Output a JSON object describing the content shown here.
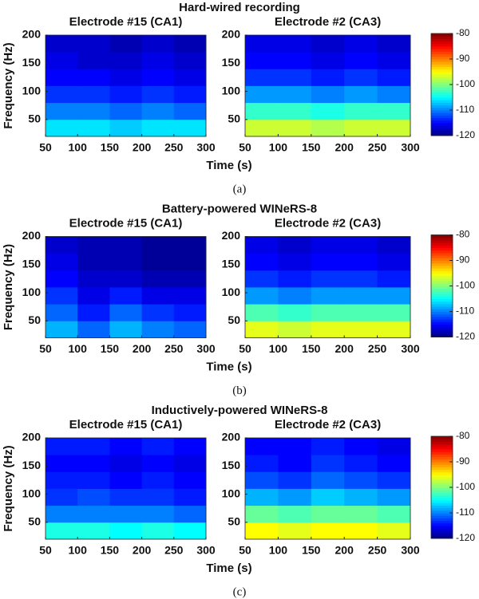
{
  "figure": {
    "rows": [
      {
        "title": "Hard-wired recording",
        "caption": "(a)",
        "x_label": "Time (s)",
        "y_label": "Frequency (Hz)",
        "colorbar": {
          "clim": [
            -120,
            -80
          ],
          "cticks": [
            -120,
            -110,
            -100,
            -90,
            -80
          ]
        }
      },
      {
        "title": "Battery-powered WINeRS-8",
        "caption": "(b)",
        "x_label": "Time (s)",
        "y_label": "Frequency (Hz)",
        "colorbar": {
          "clim": [
            -120,
            -80
          ],
          "cticks": [
            -120,
            -110,
            -100,
            -90,
            -80
          ]
        }
      },
      {
        "title": "Inductively-powered WINeRS-8",
        "caption": "(c)",
        "x_label": "Time (s)",
        "y_label": "Frequency (Hz)",
        "colorbar": {
          "clim": [
            -120,
            -80
          ],
          "cticks": [
            -120,
            -110,
            -100,
            -90,
            -80
          ]
        }
      }
    ]
  },
  "chart_data": [
    {
      "type": "heatmap",
      "title": "Electrode #15 (CA1)",
      "xlim": [
        50,
        300
      ],
      "ylim": [
        20,
        200
      ],
      "xticks": [
        50,
        100,
        150,
        200,
        250,
        300
      ],
      "yticks": [
        50,
        100,
        150,
        200
      ],
      "x_bins": [
        50,
        100,
        150,
        200,
        250,
        300
      ],
      "y_bins": [
        20,
        50,
        80,
        110,
        140,
        170,
        200
      ],
      "values": [
        [
          -106,
          -106,
          -107,
          -106,
          -106
        ],
        [
          -110,
          -110,
          -111,
          -110,
          -111
        ],
        [
          -113,
          -113,
          -114,
          -113,
          -114
        ],
        [
          -115,
          -115,
          -116,
          -115,
          -116
        ],
        [
          -116,
          -117,
          -117,
          -116,
          -117
        ],
        [
          -117,
          -117,
          -118,
          -117,
          -118
        ]
      ]
    },
    {
      "type": "heatmap",
      "title": "Electrode #2 (CA3)",
      "xlim": [
        50,
        300
      ],
      "ylim": [
        20,
        200
      ],
      "xticks": [
        50,
        100,
        150,
        200,
        250,
        300
      ],
      "yticks": [
        50,
        100,
        150,
        200
      ],
      "x_bins": [
        50,
        100,
        150,
        200,
        250,
        300
      ],
      "y_bins": [
        20,
        50,
        80,
        110,
        140,
        170,
        200
      ],
      "values": [
        [
          -97,
          -97,
          -98,
          -97,
          -97
        ],
        [
          -103,
          -103,
          -104,
          -103,
          -103
        ],
        [
          -109,
          -109,
          -110,
          -109,
          -110
        ],
        [
          -113,
          -113,
          -114,
          -113,
          -114
        ],
        [
          -115,
          -115,
          -116,
          -115,
          -116
        ],
        [
          -116,
          -116,
          -117,
          -116,
          -117
        ]
      ]
    },
    {
      "type": "heatmap",
      "title": "Electrode #15 (CA1)",
      "xlim": [
        50,
        300
      ],
      "ylim": [
        20,
        200
      ],
      "xticks": [
        50,
        100,
        150,
        200,
        250,
        300
      ],
      "yticks": [
        50,
        100,
        150,
        200
      ],
      "x_bins": [
        50,
        100,
        150,
        200,
        250,
        300
      ],
      "y_bins": [
        20,
        50,
        80,
        110,
        140,
        170,
        200
      ],
      "values": [
        [
          -108,
          -111,
          -108,
          -110,
          -111
        ],
        [
          -111,
          -114,
          -111,
          -113,
          -114
        ],
        [
          -113,
          -116,
          -114,
          -116,
          -116
        ],
        [
          -115,
          -117,
          -117,
          -118,
          -118
        ],
        [
          -116,
          -118,
          -118,
          -119,
          -119
        ],
        [
          -117,
          -118,
          -118,
          -119,
          -119
        ]
      ]
    },
    {
      "type": "heatmap",
      "title": "Electrode #2 (CA3)",
      "xlim": [
        50,
        300
      ],
      "ylim": [
        20,
        200
      ],
      "xticks": [
        50,
        100,
        150,
        200,
        250,
        300
      ],
      "yticks": [
        50,
        100,
        150,
        200
      ],
      "x_bins": [
        50,
        100,
        150,
        200,
        250,
        300
      ],
      "y_bins": [
        20,
        50,
        80,
        110,
        140,
        170,
        200
      ],
      "values": [
        [
          -96,
          -97,
          -96,
          -96,
          -96
        ],
        [
          -102,
          -103,
          -102,
          -102,
          -102
        ],
        [
          -109,
          -110,
          -109,
          -109,
          -109
        ],
        [
          -113,
          -114,
          -113,
          -113,
          -114
        ],
        [
          -115,
          -116,
          -115,
          -115,
          -116
        ],
        [
          -116,
          -117,
          -116,
          -116,
          -117
        ]
      ]
    },
    {
      "type": "heatmap",
      "title": "Electrode #15 (CA1)",
      "xlim": [
        50,
        300
      ],
      "ylim": [
        20,
        200
      ],
      "xticks": [
        50,
        100,
        150,
        200,
        250,
        300
      ],
      "yticks": [
        50,
        100,
        150,
        200
      ],
      "x_bins": [
        50,
        100,
        150,
        200,
        250,
        300
      ],
      "y_bins": [
        20,
        50,
        80,
        110,
        140,
        170,
        200
      ],
      "values": [
        [
          -104,
          -104,
          -105,
          -104,
          -105
        ],
        [
          -110,
          -110,
          -110,
          -110,
          -111
        ],
        [
          -113,
          -112,
          -113,
          -113,
          -114
        ],
        [
          -114,
          -114,
          -115,
          -114,
          -115
        ],
        [
          -115,
          -115,
          -116,
          -115,
          -116
        ],
        [
          -114,
          -114,
          -115,
          -114,
          -115
        ]
      ]
    },
    {
      "type": "heatmap",
      "title": "Electrode #2 (CA3)",
      "xlim": [
        50,
        300
      ],
      "ylim": [
        20,
        200
      ],
      "xticks": [
        50,
        100,
        150,
        200,
        250,
        300
      ],
      "yticks": [
        50,
        100,
        150,
        200
      ],
      "x_bins": [
        50,
        100,
        150,
        200,
        250,
        300
      ],
      "y_bins": [
        20,
        50,
        80,
        110,
        140,
        170,
        200
      ],
      "values": [
        [
          -95,
          -96,
          -95,
          -95,
          -96
        ],
        [
          -101,
          -102,
          -101,
          -101,
          -102
        ],
        [
          -108,
          -109,
          -107,
          -108,
          -109
        ],
        [
          -112,
          -113,
          -111,
          -112,
          -113
        ],
        [
          -114,
          -115,
          -113,
          -114,
          -115
        ],
        [
          -115,
          -115,
          -114,
          -115,
          -116
        ]
      ]
    }
  ]
}
